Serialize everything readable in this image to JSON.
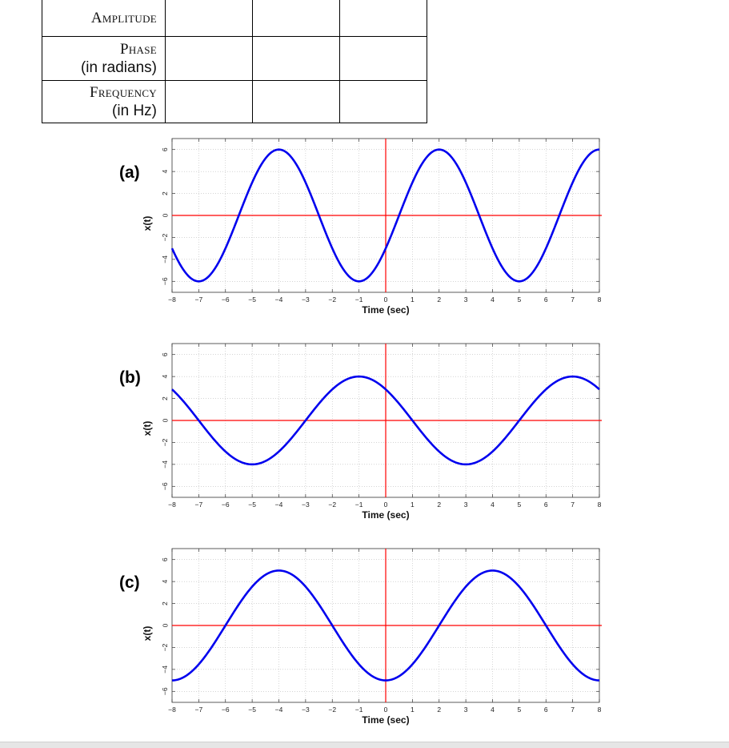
{
  "table": {
    "rows": [
      {
        "label": "Amplitude",
        "sublabel": ""
      },
      {
        "label": "Phase",
        "sublabel": "(in radians)"
      },
      {
        "label": "Frequency",
        "sublabel": "(in Hz)"
      }
    ]
  },
  "chart_data": [
    {
      "type": "line",
      "panel_label": "(a)",
      "xlabel": "Time (sec)",
      "ylabel": "x(t)",
      "xlim": [
        -8,
        8
      ],
      "ylim": [
        -7,
        7
      ],
      "xticks": [
        -8,
        -7,
        -6,
        -5,
        -4,
        -3,
        -2,
        -1,
        0,
        1,
        2,
        3,
        4,
        5,
        6,
        7,
        8
      ],
      "yticks": [
        6,
        4,
        2,
        0,
        -2,
        -4,
        -6
      ],
      "grid": true,
      "series": [
        {
          "values_description": "sinusoid",
          "amplitude": 6,
          "period": 6,
          "peak_at": 2,
          "color": "#0000ee",
          "x": [
            -8,
            -7,
            -6,
            -5,
            -4,
            -3,
            -2,
            -1,
            0,
            1,
            2,
            3,
            4,
            5,
            6,
            7,
            8
          ],
          "y": [
            -3,
            -6,
            -3,
            3,
            6,
            3,
            -3,
            -6,
            -3,
            3,
            6,
            3,
            -3,
            -6,
            -3,
            3,
            6
          ]
        }
      ],
      "axis_line_color": "#ff0000"
    },
    {
      "type": "line",
      "panel_label": "(b)",
      "xlabel": "Time (sec)",
      "ylabel": "x(t)",
      "xlim": [
        -8,
        8
      ],
      "ylim": [
        -7,
        7
      ],
      "xticks": [
        -8,
        -7,
        -6,
        -5,
        -4,
        -3,
        -2,
        -1,
        0,
        1,
        2,
        3,
        4,
        5,
        6,
        7,
        8
      ],
      "yticks": [
        6,
        4,
        2,
        0,
        -2,
        -4,
        -6
      ],
      "grid": true,
      "series": [
        {
          "amplitude": 4,
          "period": 8,
          "peak_at": -1,
          "color": "#0000ee",
          "x": [
            -8,
            -7,
            -6,
            -5,
            -4,
            -3,
            -2,
            -1,
            0,
            1,
            2,
            3,
            4,
            5,
            6,
            7,
            8
          ],
          "y": [
            2.83,
            0,
            -2.83,
            -4,
            -2.83,
            0,
            2.83,
            4,
            2.83,
            0,
            -2.83,
            -4,
            -2.83,
            0,
            2.83,
            4,
            2.83
          ]
        }
      ],
      "axis_line_color": "#ff0000"
    },
    {
      "type": "line",
      "panel_label": "(c)",
      "xlabel": "Time (sec)",
      "ylabel": "x(t)",
      "xlim": [
        -8,
        8
      ],
      "ylim": [
        -7,
        7
      ],
      "xticks": [
        -8,
        -7,
        -6,
        -5,
        -4,
        -3,
        -2,
        -1,
        0,
        1,
        2,
        3,
        4,
        5,
        6,
        7,
        8
      ],
      "yticks": [
        6,
        4,
        2,
        0,
        -2,
        -4,
        -6
      ],
      "grid": true,
      "series": [
        {
          "amplitude": 5,
          "period": 8,
          "peak_at": 4,
          "color": "#0000ee",
          "x": [
            -8,
            -7,
            -6,
            -5,
            -4,
            -3,
            -2,
            -1,
            0,
            1,
            2,
            3,
            4,
            5,
            6,
            7,
            8
          ],
          "y": [
            -5,
            -3.54,
            0,
            3.54,
            5,
            3.54,
            0,
            -3.54,
            -5,
            -3.54,
            0,
            3.54,
            5,
            3.54,
            0,
            -3.54,
            -5
          ]
        }
      ],
      "axis_line_color": "#ff0000"
    }
  ]
}
